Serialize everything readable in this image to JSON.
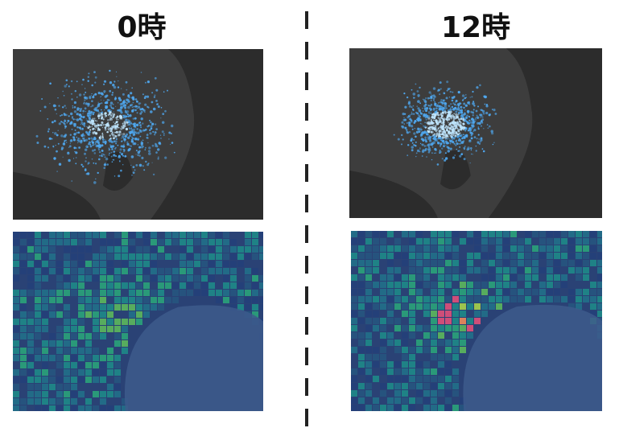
{
  "columns": [
    {
      "title": "0時"
    },
    {
      "title": "12時"
    }
  ]
}
